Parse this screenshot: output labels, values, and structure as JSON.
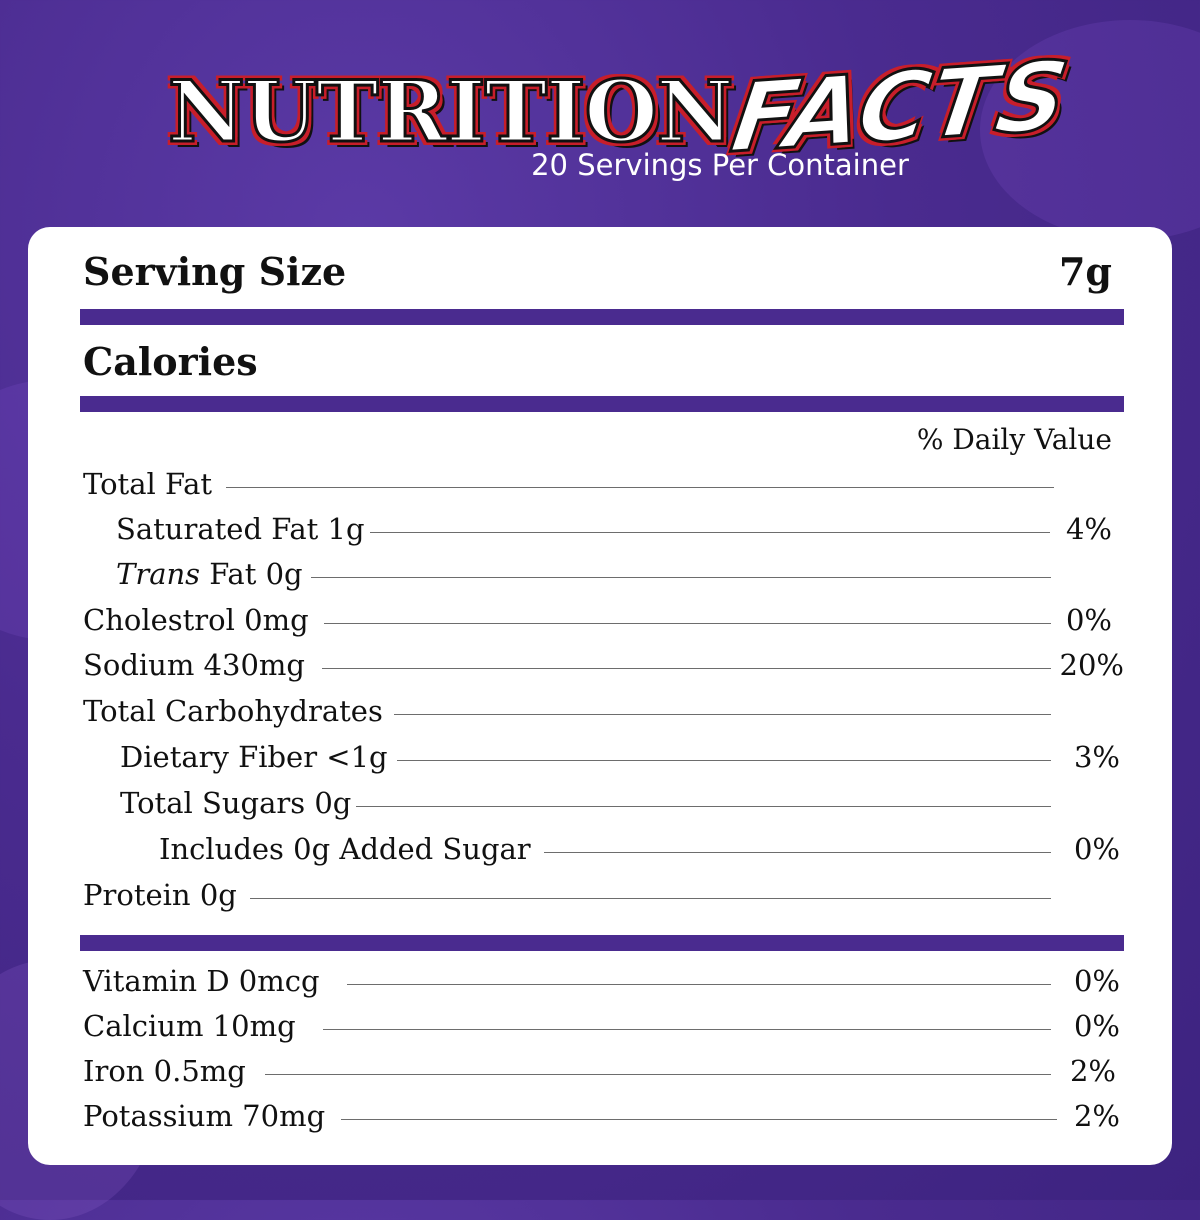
{
  "header": {
    "title_main": "NUTRITION",
    "title_accent": "FACTS",
    "servings": "20 Servings Per Container"
  },
  "panel": {
    "serving_size_label": "Serving Size",
    "serving_size_value": "7g",
    "calories_label": "Calories",
    "dv_header": "% Daily Value"
  },
  "nutrients": [
    {
      "label": "Total Fat",
      "pct": ""
    },
    {
      "label": "Saturated Fat 1g",
      "pct": "4%"
    },
    {
      "label_italic": "Trans",
      "label": " Fat 0g",
      "pct": ""
    },
    {
      "label": "Cholestrol 0mg",
      "pct": "0%"
    },
    {
      "label": "Sodium 430mg",
      "pct": "20%"
    },
    {
      "label": "Total Carbohydrates",
      "pct": ""
    },
    {
      "label": "Dietary Fiber <1g",
      "pct": "3%"
    },
    {
      "label": "Total Sugars 0g",
      "pct": ""
    },
    {
      "label": "Includes 0g Added Sugar",
      "pct": "0%"
    },
    {
      "label": "Protein 0g",
      "pct": ""
    }
  ],
  "vitamins": [
    {
      "label": "Vitamin D 0mcg",
      "pct": "0%"
    },
    {
      "label": "Calcium 10mg",
      "pct": "0%"
    },
    {
      "label": "Iron 0.5mg",
      "pct": "2%"
    },
    {
      "label": "Potassium 70mg",
      "pct": "2%"
    }
  ],
  "colors": {
    "background": "#4a2b8f",
    "bar": "#4a2b8f",
    "title_outline": "#c81e2a"
  }
}
